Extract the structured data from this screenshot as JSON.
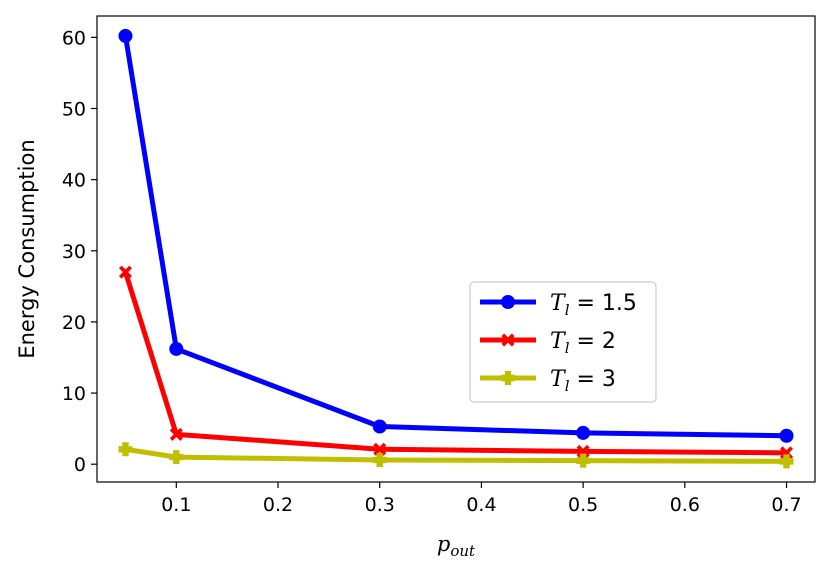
{
  "chart_data": {
    "type": "line",
    "xlabel_main": "p",
    "xlabel_sub": "out",
    "ylabel": "Energy Consumption",
    "xlim": [
      0.022,
      0.728
    ],
    "ylim": [
      -2.5,
      63.0
    ],
    "xticks": [
      0.1,
      0.2,
      0.3,
      0.4,
      0.5,
      0.6,
      0.7
    ],
    "xtick_labels": [
      "0.1",
      "0.2",
      "0.3",
      "0.4",
      "0.5",
      "0.6",
      "0.7"
    ],
    "yticks": [
      0,
      10,
      20,
      30,
      40,
      50,
      60
    ],
    "ytick_labels": [
      "0",
      "10",
      "20",
      "30",
      "40",
      "50",
      "60"
    ],
    "grid": false,
    "legend_position": "center-right",
    "series": [
      {
        "name_main": "T",
        "name_sub": "l",
        "name_value": " = 1.5",
        "color": "#0000ff",
        "marker": "circle",
        "x": [
          0.05,
          0.1,
          0.3,
          0.5,
          0.7
        ],
        "y": [
          60.2,
          16.2,
          5.3,
          4.4,
          4.0
        ]
      },
      {
        "name_main": "T",
        "name_sub": "l",
        "name_value": " = 2",
        "color": "#ff0000",
        "marker": "x-filled",
        "x": [
          0.05,
          0.1,
          0.3,
          0.5,
          0.7
        ],
        "y": [
          27.0,
          4.2,
          2.1,
          1.8,
          1.6
        ]
      },
      {
        "name_main": "T",
        "name_sub": "l",
        "name_value": " = 3",
        "color": "#bfbf00",
        "marker": "plus-filled",
        "x": [
          0.05,
          0.1,
          0.3,
          0.5,
          0.7
        ],
        "y": [
          2.1,
          1.0,
          0.6,
          0.5,
          0.4
        ]
      }
    ]
  }
}
